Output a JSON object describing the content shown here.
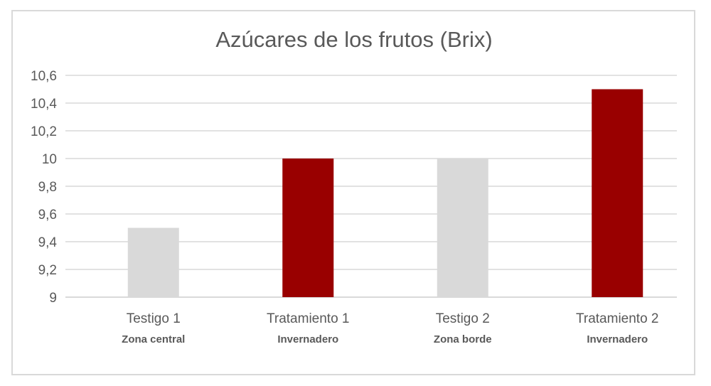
{
  "chart_data": {
    "type": "bar",
    "title": "Azúcares de los frutos (Brix)",
    "categories": [
      "Testigo 1",
      "Tratamiento 1",
      "Testigo 2",
      "Tratamiento 2"
    ],
    "subcategories": [
      "Zona central",
      "Invernadero",
      "Zona borde",
      "Invernadero"
    ],
    "values": [
      9.5,
      10.0,
      10.0,
      10.5
    ],
    "colors": [
      "#d9d9d9",
      "#990000",
      "#d9d9d9",
      "#990000"
    ],
    "ylim": [
      9,
      10.6
    ],
    "yticks": [
      "9",
      "9,2",
      "9,4",
      "9,6",
      "9,8",
      "10",
      "10,2",
      "10,4",
      "10,6"
    ],
    "grid": true,
    "legend": "none"
  }
}
